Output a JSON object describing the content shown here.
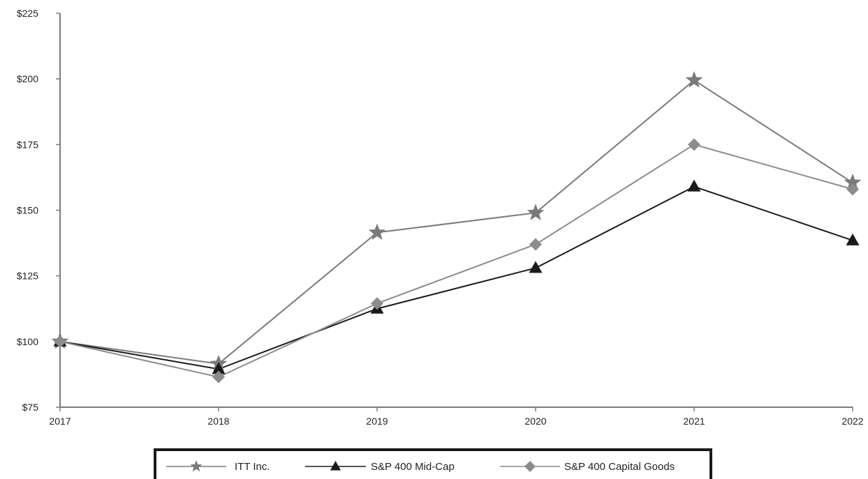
{
  "chart_data": {
    "type": "line",
    "title": "",
    "xlabel": "",
    "ylabel": "",
    "x": [
      "2017",
      "2018",
      "2019",
      "2020",
      "2021",
      "2022"
    ],
    "ylim": [
      75,
      225
    ],
    "yticks": [
      75,
      100,
      125,
      150,
      175,
      200,
      225
    ],
    "ytick_labels": [
      "$75",
      "$100",
      "$125",
      "$150",
      "$175",
      "$200",
      "$225"
    ],
    "grid": false,
    "legend_position": "bottom",
    "series": [
      {
        "name": "ITT Inc.",
        "marker": "star",
        "color": "#7a7a7a",
        "values": [
          100,
          91.5,
          141.5,
          149,
          199.5,
          160.5
        ]
      },
      {
        "name": "S&P 400 Mid-Cap",
        "marker": "triangle",
        "color": "#1a1a1a",
        "values": [
          100,
          89.5,
          112.5,
          128,
          159,
          138.5
        ]
      },
      {
        "name": "S&P 400 Capital Goods",
        "marker": "diamond",
        "color": "#8c8c8c",
        "values": [
          100,
          86.5,
          114.5,
          137,
          175,
          158
        ]
      }
    ]
  }
}
